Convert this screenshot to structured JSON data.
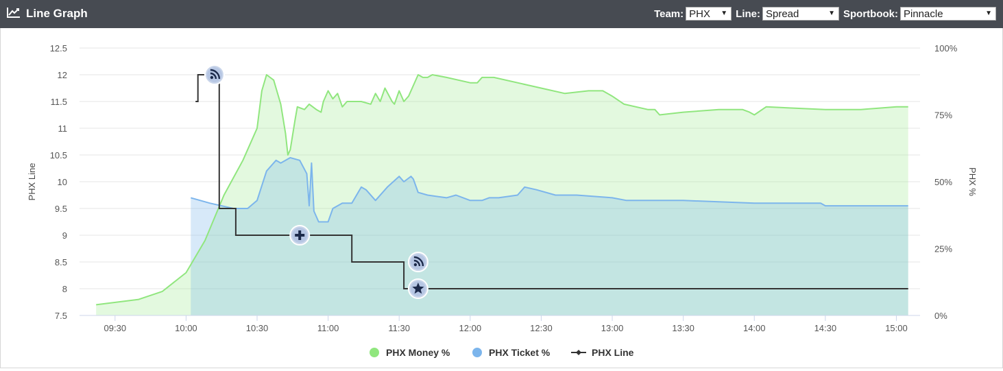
{
  "header": {
    "title": "Line Graph",
    "icon": "line-chart-icon",
    "team_label": "Team:",
    "team_value": "PHX",
    "line_label": "Line:",
    "line_value": "Spread",
    "sportbook_label": "Sportbook:",
    "sportbook_value": "Pinnacle"
  },
  "chart_data": {
    "type": "line",
    "title": "",
    "xlabel": "",
    "ylabel": "PHX Line",
    "ylabel_right": "PHX %",
    "x_ticks": [
      "09:30",
      "10:00",
      "10:30",
      "11:00",
      "11:30",
      "12:00",
      "12:30",
      "13:00",
      "13:30",
      "14:00",
      "14:30",
      "15:00"
    ],
    "xlim": [
      "09:15",
      "15:10"
    ],
    "ylim": [
      7.5,
      12.5
    ],
    "y_ticks": [
      "7.5",
      "8",
      "8.5",
      "9",
      "9.5",
      "10",
      "10.5",
      "11",
      "11.5",
      "12",
      "12.5"
    ],
    "ylim_right": [
      0,
      100
    ],
    "y_ticks_right": [
      "0%",
      "25%",
      "50%",
      "75%",
      "100%"
    ],
    "grid": true,
    "legend_position": "bottom",
    "colors": {
      "money": "#90e67e",
      "ticket": "#7cb5ec",
      "line": "#333333"
    },
    "series": [
      {
        "name": "PHX Money %",
        "axis": "right",
        "type": "area",
        "points": [
          [
            "09:22",
            4
          ],
          [
            "09:40",
            6
          ],
          [
            "09:50",
            9
          ],
          [
            "10:00",
            16
          ],
          [
            "10:08",
            28
          ],
          [
            "10:16",
            45
          ],
          [
            "10:24",
            58
          ],
          [
            "10:30",
            70
          ],
          [
            "10:32",
            84
          ],
          [
            "10:34",
            90
          ],
          [
            "10:37",
            88
          ],
          [
            "10:40",
            79
          ],
          [
            "10:42",
            68
          ],
          [
            "10:43",
            60
          ],
          [
            "10:44",
            62
          ],
          [
            "10:46",
            73
          ],
          [
            "10:47",
            78
          ],
          [
            "10:50",
            77
          ],
          [
            "10:52",
            79
          ],
          [
            "10:55",
            77
          ],
          [
            "10:57",
            76
          ],
          [
            "10:58",
            80
          ],
          [
            "11:00",
            84
          ],
          [
            "11:02",
            81
          ],
          [
            "11:04",
            83
          ],
          [
            "11:06",
            78
          ],
          [
            "11:08",
            80
          ],
          [
            "11:14",
            80
          ],
          [
            "11:18",
            79
          ],
          [
            "11:20",
            83
          ],
          [
            "11:22",
            80
          ],
          [
            "11:24",
            85
          ],
          [
            "11:27",
            80
          ],
          [
            "11:28",
            79
          ],
          [
            "11:30",
            84
          ],
          [
            "11:32",
            80
          ],
          [
            "11:34",
            82
          ],
          [
            "11:38",
            90
          ],
          [
            "11:40",
            89
          ],
          [
            "11:42",
            89
          ],
          [
            "11:44",
            90
          ],
          [
            "11:50",
            89
          ],
          [
            "12:00",
            87
          ],
          [
            "12:03",
            87
          ],
          [
            "12:05",
            89
          ],
          [
            "12:10",
            89
          ],
          [
            "12:30",
            85
          ],
          [
            "12:40",
            83
          ],
          [
            "12:50",
            84
          ],
          [
            "12:56",
            84
          ],
          [
            "13:00",
            82
          ],
          [
            "13:05",
            79
          ],
          [
            "13:15",
            77
          ],
          [
            "13:18",
            77
          ],
          [
            "13:20",
            75
          ],
          [
            "13:30",
            76
          ],
          [
            "13:45",
            77
          ],
          [
            "13:55",
            77
          ],
          [
            "13:58",
            76
          ],
          [
            "14:00",
            75
          ],
          [
            "14:05",
            78
          ],
          [
            "14:30",
            77
          ],
          [
            "14:45",
            77
          ],
          [
            "15:00",
            78
          ],
          [
            "15:05",
            78
          ]
        ]
      },
      {
        "name": "PHX Ticket %",
        "axis": "right",
        "type": "area",
        "points": [
          [
            "10:02",
            44
          ],
          [
            "10:10",
            42
          ],
          [
            "10:20",
            40
          ],
          [
            "10:26",
            40
          ],
          [
            "10:30",
            43
          ],
          [
            "10:34",
            54
          ],
          [
            "10:38",
            58
          ],
          [
            "10:40",
            57
          ],
          [
            "10:44",
            59
          ],
          [
            "10:48",
            58
          ],
          [
            "10:51",
            53
          ],
          [
            "10:52",
            41
          ],
          [
            "10:53",
            57
          ],
          [
            "10:54",
            39
          ],
          [
            "10:56",
            35
          ],
          [
            "11:00",
            35
          ],
          [
            "11:02",
            40
          ],
          [
            "11:06",
            42
          ],
          [
            "11:10",
            42
          ],
          [
            "11:14",
            48
          ],
          [
            "11:16",
            47
          ],
          [
            "11:20",
            43
          ],
          [
            "11:25",
            48
          ],
          [
            "11:30",
            52
          ],
          [
            "11:32",
            50
          ],
          [
            "11:35",
            52
          ],
          [
            "11:36",
            51
          ],
          [
            "11:38",
            46
          ],
          [
            "11:42",
            45
          ],
          [
            "11:50",
            44
          ],
          [
            "11:54",
            45
          ],
          [
            "12:00",
            43
          ],
          [
            "12:05",
            43
          ],
          [
            "12:08",
            44
          ],
          [
            "12:12",
            44
          ],
          [
            "12:20",
            45
          ],
          [
            "12:23",
            48
          ],
          [
            "12:28",
            47
          ],
          [
            "12:36",
            45
          ],
          [
            "12:45",
            45
          ],
          [
            "13:00",
            44
          ],
          [
            "13:06",
            43
          ],
          [
            "13:30",
            43
          ],
          [
            "14:00",
            42
          ],
          [
            "14:20",
            42
          ],
          [
            "14:25",
            42
          ],
          [
            "14:28",
            42
          ],
          [
            "14:30",
            41
          ],
          [
            "14:35",
            41
          ],
          [
            "15:05",
            41
          ]
        ]
      },
      {
        "name": "PHX Line",
        "axis": "left",
        "type": "step",
        "points": [
          [
            "10:04",
            11.5
          ],
          [
            "10:05",
            11.5
          ],
          [
            "10:05",
            12
          ],
          [
            "10:14",
            12
          ],
          [
            "10:14",
            9.5
          ],
          [
            "10:21",
            9.5
          ],
          [
            "10:21",
            9
          ],
          [
            "10:52",
            9
          ],
          [
            "10:52",
            9
          ],
          [
            "11:10",
            9
          ],
          [
            "11:10",
            8.5
          ],
          [
            "11:32",
            8.5
          ],
          [
            "11:32",
            8
          ],
          [
            "15:05",
            8
          ]
        ]
      }
    ],
    "markers": [
      {
        "time": "10:12",
        "value": 12,
        "icon": "rss-icon"
      },
      {
        "time": "10:48",
        "value": 9,
        "icon": "plus-icon"
      },
      {
        "time": "11:38",
        "value": 8.5,
        "icon": "rss-icon"
      },
      {
        "time": "11:38",
        "value": 8,
        "icon": "star-icon"
      }
    ],
    "legend": [
      {
        "label": "PHX Money %",
        "symbol": "circle",
        "color": "#90e67e"
      },
      {
        "label": "PHX Ticket %",
        "symbol": "circle",
        "color": "#7cb5ec"
      },
      {
        "label": "PHX Line",
        "symbol": "line-diamond",
        "color": "#333333"
      }
    ]
  }
}
